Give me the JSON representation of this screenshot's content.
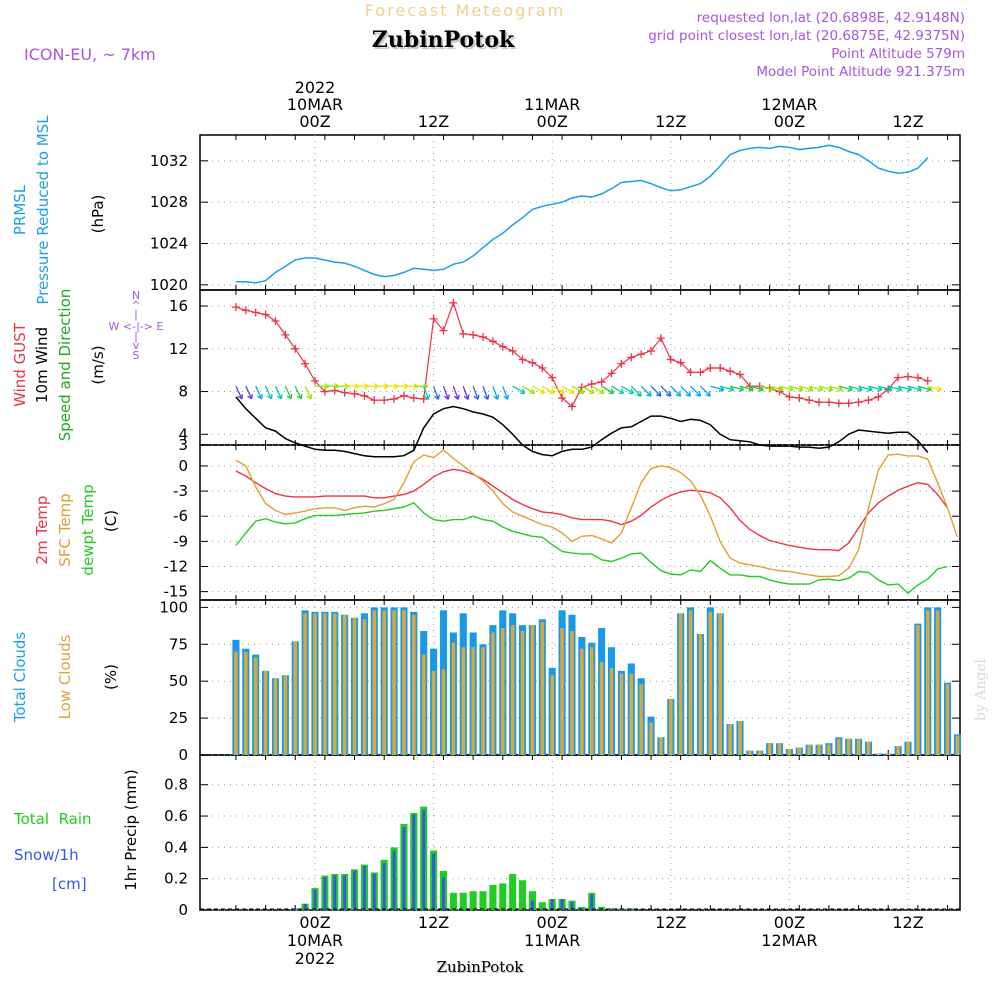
{
  "header": {
    "forecast_label": "Forecast Meteogram",
    "station_name": "ZubinPotok",
    "model_label": "ICON-EU, ~ 7km",
    "requested_point": "requested lon,lat (20.6898E, 42.9148N)",
    "closest_point": "grid point closest lon,lat (20.6875E, 42.9375N)",
    "point_altitude": "Point Altitude 579m",
    "model_altitude": "Model Point Altitude 921.375m"
  },
  "time_axis": {
    "hour_count": 64,
    "top_ticks": [
      {
        "hour": 8,
        "lines": [
          "2022",
          "10MAR",
          "00Z"
        ]
      },
      {
        "hour": 20,
        "lines": [
          "12Z"
        ]
      },
      {
        "hour": 32,
        "lines": [
          "11MAR",
          "00Z"
        ]
      },
      {
        "hour": 44,
        "lines": [
          "12Z"
        ]
      },
      {
        "hour": 56,
        "lines": [
          "12MAR",
          "00Z"
        ]
      },
      {
        "hour": 68,
        "lines": [
          "12Z"
        ]
      }
    ],
    "bottom_ticks": [
      {
        "hour": 8,
        "lines": [
          "00Z",
          "10MAR",
          "2022"
        ]
      },
      {
        "hour": 20,
        "lines": [
          "12Z"
        ]
      },
      {
        "hour": 32,
        "lines": [
          "00Z",
          "11MAR"
        ]
      },
      {
        "hour": 44,
        "lines": [
          "12Z"
        ]
      },
      {
        "hour": 56,
        "lines": [
          "00Z",
          "12MAR"
        ]
      },
      {
        "hour": 68,
        "lines": [
          "12Z"
        ]
      }
    ]
  },
  "panel_labels": {
    "pressure": [
      "PRMSL",
      "Pressure Reduced to MSL",
      "(hPa)"
    ],
    "wind": [
      "Wind GUST",
      "10m Wind",
      "Speed and Direction",
      "(m/s)"
    ],
    "wind_compass": [
      "N",
      "^",
      "|",
      "W <-|-> E",
      "|",
      "v",
      "S"
    ],
    "temp": [
      "2m Temp",
      "SFC Temp",
      "dewpt Temp",
      "(C)"
    ],
    "clouds": [
      "Total Clouds",
      "Low Clouds",
      "(%)"
    ],
    "precip_legend": [
      "Total  Rain",
      "Snow/1h",
      "[cm]"
    ],
    "precip_axis": "1hr Precip (mm)"
  },
  "footer": {
    "station_name": "ZubinPotok"
  },
  "watermark": "by Angel",
  "chart_data": [
    {
      "type": "line",
      "title": "PRMSL Pressure Reduced to MSL",
      "ylabel": "(hPa)",
      "ylim": [
        1019.5,
        1034.5
      ],
      "yticks": [
        1020,
        1024,
        1028,
        1032
      ],
      "grid": true,
      "series": [
        {
          "name": "PRMSL",
          "color": "#1aa0e6",
          "values": [
            1020.3,
            1020.3,
            1020.2,
            1020.4,
            1021.2,
            1021.8,
            1022.4,
            1022.6,
            1022.6,
            1022.4,
            1022.2,
            1022.1,
            1021.8,
            1021.4,
            1021.0,
            1020.8,
            1020.9,
            1021.2,
            1021.6,
            1021.5,
            1021.4,
            1021.5,
            1022.0,
            1022.2,
            1022.8,
            1023.6,
            1024.4,
            1025.0,
            1025.8,
            1026.5,
            1027.3,
            1027.6,
            1027.8,
            1028.0,
            1028.4,
            1028.6,
            1028.5,
            1028.8,
            1029.3,
            1029.9,
            1030.0,
            1030.1,
            1029.8,
            1029.4,
            1029.1,
            1029.2,
            1029.5,
            1029.8,
            1030.5,
            1031.5,
            1032.6,
            1033.0,
            1033.2,
            1033.3,
            1033.2,
            1033.4,
            1033.3,
            1033.1,
            1033.2,
            1033.3,
            1033.5,
            1033.3,
            1032.9,
            1032.6,
            1032.0,
            1031.3,
            1031.0,
            1030.8,
            1030.9,
            1031.3,
            1032.3
          ]
        }
      ]
    },
    {
      "type": "line",
      "title": "Wind GUST 10m Wind Speed and Direction",
      "ylabel": "(m/s)",
      "ylim": [
        3,
        17.5
      ],
      "yticks": [
        3,
        4,
        8,
        12,
        16
      ],
      "grid": true,
      "series": [
        {
          "name": "Wind GUST",
          "color": "#ee3344",
          "marker": "+",
          "values": [
            15.9,
            15.6,
            15.4,
            15.2,
            14.6,
            13.3,
            12.0,
            10.6,
            9.0,
            8.0,
            8.1,
            7.9,
            7.8,
            7.6,
            7.2,
            7.2,
            7.3,
            7.6,
            7.4,
            7.3,
            14.8,
            13.7,
            16.3,
            13.4,
            13.3,
            13.1,
            12.7,
            12.2,
            11.8,
            11.0,
            10.7,
            10.2,
            9.3,
            7.4,
            6.6,
            8.4,
            8.7,
            8.9,
            9.7,
            10.6,
            11.2,
            11.5,
            11.8,
            13.0,
            11.0,
            10.7,
            9.8,
            9.8,
            10.2,
            10.2,
            9.9,
            9.6,
            8.5,
            8.5,
            8.3,
            8.0,
            7.5,
            7.4,
            7.2,
            7.0,
            7.0,
            6.9,
            6.9,
            7.0,
            7.2,
            7.5,
            8.2,
            9.3,
            9.4,
            9.3,
            9.0
          ]
        },
        {
          "name": "10m Wind",
          "color": "#000000",
          "values": [
            7.5,
            6.4,
            5.5,
            4.6,
            4.3,
            3.6,
            3.2,
            2.9,
            2.6,
            2.5,
            2.5,
            2.4,
            2.2,
            2.0,
            1.9,
            1.9,
            1.9,
            2.0,
            2.5,
            4.6,
            5.9,
            6.4,
            6.6,
            6.4,
            6.1,
            5.9,
            5.6,
            4.9,
            4.0,
            3.0,
            2.4,
            2.1,
            2.0,
            2.4,
            2.6,
            2.6,
            2.8,
            3.5,
            4.1,
            4.6,
            4.7,
            5.2,
            5.7,
            5.7,
            5.5,
            5.2,
            5.4,
            5.3,
            4.9,
            4.0,
            3.5,
            3.4,
            3.3,
            3.0,
            2.9,
            2.9,
            2.9,
            2.8,
            2.8,
            2.7,
            2.8,
            3.3,
            4.0,
            4.4,
            4.3,
            4.2,
            4.1,
            4.2,
            4.2,
            3.4,
            2.3
          ]
        }
      ],
      "arrow_row_value": 8.5,
      "compass_labels": [
        "N",
        "W",
        "E",
        "S"
      ]
    },
    {
      "type": "line",
      "title": "2m Temp SFC Temp dewpt Temp",
      "ylabel": "(C)",
      "ylim": [
        -16,
        2.5
      ],
      "yticks": [
        0,
        -3,
        -6,
        -9,
        -12,
        -15
      ],
      "grid": true,
      "series": [
        {
          "name": "2m Temp",
          "color": "#ee3344",
          "values": [
            -0.6,
            -1.2,
            -2.0,
            -2.7,
            -3.3,
            -3.6,
            -3.7,
            -3.7,
            -3.7,
            -3.6,
            -3.6,
            -3.6,
            -3.6,
            -3.6,
            -3.8,
            -3.8,
            -3.6,
            -3.4,
            -3.0,
            -2.2,
            -1.3,
            -0.7,
            -0.4,
            -0.6,
            -1.0,
            -1.6,
            -2.4,
            -3.2,
            -4.0,
            -4.6,
            -5.1,
            -5.5,
            -5.6,
            -5.8,
            -6.2,
            -6.4,
            -6.4,
            -6.4,
            -6.6,
            -7.0,
            -6.6,
            -5.9,
            -4.9,
            -4.1,
            -3.5,
            -3.1,
            -2.9,
            -3.0,
            -3.2,
            -3.8,
            -5.0,
            -6.5,
            -7.6,
            -8.3,
            -8.9,
            -9.2,
            -9.5,
            -9.7,
            -9.9,
            -10.0,
            -10.0,
            -10.1,
            -9.2,
            -7.4,
            -5.6,
            -4.4,
            -3.6,
            -2.9,
            -2.4,
            -2.0,
            -2.2,
            -3.4,
            -5.0
          ]
        },
        {
          "name": "SFC Temp",
          "color": "#e0a030",
          "values": [
            0.7,
            0.0,
            -2.5,
            -4.5,
            -5.3,
            -5.8,
            -5.6,
            -5.4,
            -5.1,
            -5.0,
            -5.0,
            -5.3,
            -5.0,
            -4.8,
            -4.9,
            -4.5,
            -4.0,
            -2.0,
            0.5,
            1.3,
            1.0,
            1.9,
            0.9,
            0.0,
            -0.9,
            -1.8,
            -3.0,
            -4.5,
            -5.5,
            -6.0,
            -6.5,
            -7.0,
            -7.3,
            -8.0,
            -9.0,
            -8.4,
            -8.3,
            -8.7,
            -9.2,
            -8.0,
            -5.0,
            -2.0,
            -0.3,
            0.0,
            -0.2,
            -0.8,
            -1.8,
            -3.5,
            -6.0,
            -9.0,
            -11.0,
            -11.6,
            -11.8,
            -12.0,
            -12.3,
            -12.5,
            -12.6,
            -12.8,
            -13.0,
            -13.2,
            -13.2,
            -13.1,
            -12.2,
            -10.0,
            -5.0,
            -0.5,
            1.3,
            1.4,
            1.2,
            1.2,
            0.8,
            -2.0,
            -5.0,
            -8.5
          ]
        },
        {
          "name": "dewpt Temp",
          "color": "#22cc22",
          "values": [
            -9.5,
            -8.0,
            -6.6,
            -6.3,
            -6.7,
            -6.9,
            -6.8,
            -6.3,
            -5.9,
            -5.9,
            -5.9,
            -5.8,
            -5.7,
            -5.6,
            -5.4,
            -5.3,
            -5.1,
            -4.9,
            -4.4,
            -5.6,
            -6.4,
            -6.6,
            -6.4,
            -6.4,
            -6.0,
            -6.4,
            -6.6,
            -7.3,
            -7.8,
            -8.1,
            -8.4,
            -8.5,
            -9.4,
            -10.2,
            -10.4,
            -10.5,
            -10.5,
            -11.2,
            -11.4,
            -11.0,
            -10.5,
            -10.4,
            -11.5,
            -12.5,
            -12.9,
            -13.0,
            -12.4,
            -12.6,
            -11.3,
            -12.2,
            -13.0,
            -13.0,
            -13.2,
            -13.2,
            -13.6,
            -13.9,
            -14.1,
            -14.1,
            -14.1,
            -13.6,
            -13.5,
            -13.7,
            -13.4,
            -12.6,
            -12.7,
            -13.6,
            -14.2,
            -14.1,
            -15.2,
            -14.2,
            -13.5,
            -12.3,
            -12.0
          ]
        }
      ]
    },
    {
      "type": "bar",
      "title": "Total Clouds Low Clouds",
      "ylabel": "(%)",
      "ylim": [
        0,
        105
      ],
      "yticks": [
        0,
        25,
        50,
        75,
        100
      ],
      "grid": true,
      "series": [
        {
          "name": "Total Clouds",
          "color": "#1a9ae6",
          "values": [
            78,
            72,
            68,
            57,
            52,
            54,
            77,
            98,
            97,
            97,
            97,
            95,
            93,
            96,
            100,
            100,
            100,
            100,
            97,
            84,
            72,
            98,
            83,
            96,
            83,
            75,
            88,
            98,
            96,
            88,
            88,
            92,
            59,
            98,
            95,
            80,
            76,
            86,
            73,
            57,
            62,
            52,
            26,
            12,
            38,
            96,
            100,
            82,
            100,
            96,
            21,
            23,
            3,
            3,
            8,
            8,
            4,
            5,
            7,
            7,
            8,
            12,
            11,
            11,
            9,
            1,
            1,
            6,
            9,
            89,
            100,
            100,
            49,
            14,
            1
          ]
        },
        {
          "name": "Low Clouds",
          "color": "#d8a840",
          "values": [
            70,
            70,
            66,
            57,
            52,
            54,
            77,
            96,
            96,
            96,
            96,
            95,
            93,
            92,
            98,
            98,
            98,
            98,
            95,
            68,
            57,
            58,
            76,
            73,
            73,
            73,
            83,
            86,
            88,
            84,
            88,
            90,
            54,
            86,
            84,
            72,
            73,
            63,
            59,
            55,
            55,
            48,
            22,
            12,
            38,
            96,
            98,
            82,
            97,
            96,
            21,
            23,
            3,
            3,
            8,
            8,
            4,
            5,
            7,
            7,
            7,
            11,
            11,
            11,
            9,
            1,
            1,
            6,
            9,
            88,
            98,
            98,
            48,
            13,
            1
          ]
        }
      ]
    },
    {
      "type": "bar",
      "title": "1hr Precip",
      "ylabel": "1hr Precip (mm)",
      "ylim": [
        0,
        0.99
      ],
      "yticks": [
        0,
        0.2,
        0.4,
        0.6,
        0.8
      ],
      "grid": true,
      "series": [
        {
          "name": "Total Rain",
          "color": "#22cc22",
          "values": [
            0,
            0,
            0,
            0,
            0,
            0,
            0.01,
            0.04,
            0.14,
            0.22,
            0.23,
            0.23,
            0.26,
            0.29,
            0.24,
            0.32,
            0.4,
            0.55,
            0.62,
            0.66,
            0.38,
            0.25,
            0.11,
            0.11,
            0.12,
            0.12,
            0.16,
            0.17,
            0.23,
            0.19,
            0.12,
            0.05,
            0.07,
            0.07,
            0.06,
            0.02,
            0.11,
            0.02,
            0.01,
            0.01,
            0.01,
            0,
            0,
            0,
            0,
            0,
            0,
            0,
            0,
            0,
            0,
            0,
            0,
            0,
            0,
            0,
            0,
            0,
            0,
            0,
            0,
            0,
            0,
            0,
            0,
            0,
            0,
            0,
            0,
            0,
            0,
            0,
            0,
            0
          ]
        },
        {
          "name": "Snow/1h",
          "color": "#3355ee",
          "values": [
            0,
            0,
            0,
            0,
            0,
            0,
            0.01,
            0.04,
            0.13,
            0.21,
            0.22,
            0.22,
            0.25,
            0.28,
            0.23,
            0.3,
            0.38,
            0.53,
            0.61,
            0.64,
            0.36,
            0.21,
            0,
            0,
            0,
            0,
            0,
            0,
            0,
            0,
            0.06,
            0.01,
            0.07,
            0.07,
            0.05,
            0.01,
            0.1,
            0.01,
            0.01,
            0.01,
            0.01,
            0,
            0,
            0,
            0,
            0,
            0,
            0,
            0,
            0,
            0,
            0,
            0,
            0,
            0,
            0,
            0,
            0,
            0,
            0,
            0,
            0,
            0,
            0,
            0,
            0,
            0,
            0,
            0,
            0,
            0,
            0,
            0,
            0
          ]
        }
      ]
    }
  ]
}
